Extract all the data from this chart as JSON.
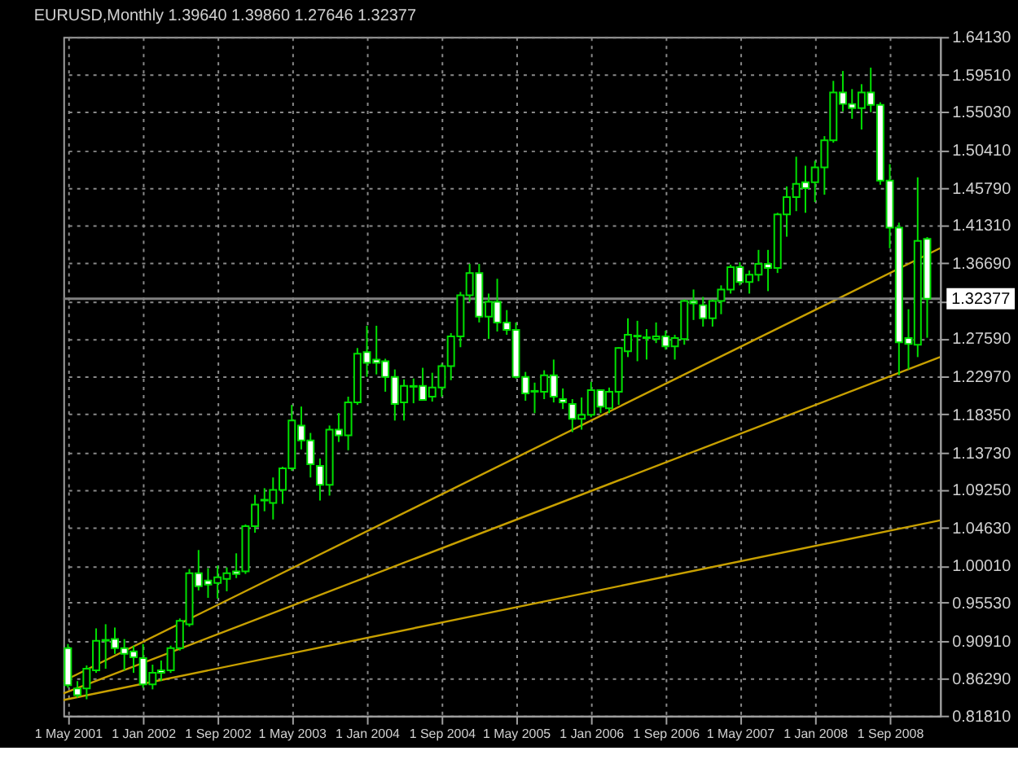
{
  "chart_data": {
    "type": "candlestick",
    "title": "EURUSD,Monthly  1.39640 1.39860 1.27646 1.32377",
    "color": "#00e000",
    "x": [
      "2001-05",
      "2001-06",
      "2001-07",
      "2001-08",
      "2001-09",
      "2001-10",
      "2001-11",
      "2001-12",
      "2002-01",
      "2002-02",
      "2002-03",
      "2002-04",
      "2002-05",
      "2002-06",
      "2002-07",
      "2002-08",
      "2002-09",
      "2002-10",
      "2002-11",
      "2002-12",
      "2003-01",
      "2003-02",
      "2003-03",
      "2003-04",
      "2003-05",
      "2003-06",
      "2003-07",
      "2003-08",
      "2003-09",
      "2003-10",
      "2003-11",
      "2003-12",
      "2004-01",
      "2004-02",
      "2004-03",
      "2004-04",
      "2004-05",
      "2004-06",
      "2004-07",
      "2004-08",
      "2004-09",
      "2004-10",
      "2004-11",
      "2004-12",
      "2005-01",
      "2005-02",
      "2005-03",
      "2005-04",
      "2005-05",
      "2005-06",
      "2005-07",
      "2005-08",
      "2005-09",
      "2005-10",
      "2005-11",
      "2005-12",
      "2006-01",
      "2006-02",
      "2006-03",
      "2006-04",
      "2006-05",
      "2006-06",
      "2006-07",
      "2006-08",
      "2006-09",
      "2006-10",
      "2006-11",
      "2006-12",
      "2007-01",
      "2007-02",
      "2007-03",
      "2007-04",
      "2007-05",
      "2007-06",
      "2007-07",
      "2007-08",
      "2007-09",
      "2007-10",
      "2007-11",
      "2007-12",
      "2008-01",
      "2008-02",
      "2008-03",
      "2008-04",
      "2008-05",
      "2008-06",
      "2008-07",
      "2008-08",
      "2008-09",
      "2008-10",
      "2008-11",
      "2008-12",
      "2009-01"
    ],
    "ohlc": [
      [
        0.9,
        0.905,
        0.852,
        0.855
      ],
      [
        0.851,
        0.86,
        0.84,
        0.843
      ],
      [
        0.851,
        0.879,
        0.838,
        0.875
      ],
      [
        0.873,
        0.924,
        0.87,
        0.909
      ],
      [
        0.909,
        0.929,
        0.875,
        0.91
      ],
      [
        0.911,
        0.925,
        0.893,
        0.9
      ],
      [
        0.9,
        0.911,
        0.873,
        0.893
      ],
      [
        0.896,
        0.903,
        0.87,
        0.889
      ],
      [
        0.888,
        0.905,
        0.852,
        0.856
      ],
      [
        0.856,
        0.88,
        0.85,
        0.87
      ],
      [
        0.873,
        0.885,
        0.86,
        0.87
      ],
      [
        0.873,
        0.903,
        0.87,
        0.9
      ],
      [
        0.9,
        0.936,
        0.897,
        0.933
      ],
      [
        0.929,
        0.996,
        0.926,
        0.991
      ],
      [
        0.991,
        1.019,
        0.97,
        0.975
      ],
      [
        0.982,
        0.997,
        0.961,
        0.977
      ],
      [
        0.979,
        1.0,
        0.96,
        0.986
      ],
      [
        0.984,
        0.998,
        0.969,
        0.991
      ],
      [
        0.993,
        1.015,
        0.985,
        0.99
      ],
      [
        0.993,
        1.05,
        0.99,
        1.048
      ],
      [
        1.048,
        1.086,
        1.04,
        1.074
      ],
      [
        1.079,
        1.094,
        1.066,
        1.08
      ],
      [
        1.076,
        1.107,
        1.056,
        1.092
      ],
      [
        1.092,
        1.12,
        1.075,
        1.118
      ],
      [
        1.118,
        1.195,
        1.115,
        1.176
      ],
      [
        1.17,
        1.193,
        1.141,
        1.152
      ],
      [
        1.152,
        1.161,
        1.107,
        1.123
      ],
      [
        1.121,
        1.13,
        1.079,
        1.098
      ],
      [
        1.098,
        1.17,
        1.085,
        1.165
      ],
      [
        1.165,
        1.185,
        1.15,
        1.158
      ],
      [
        1.158,
        1.205,
        1.14,
        1.198
      ],
      [
        1.198,
        1.264,
        1.195,
        1.257
      ],
      [
        1.259,
        1.291,
        1.229,
        1.246
      ],
      [
        1.25,
        1.291,
        1.232,
        1.246
      ],
      [
        1.248,
        1.251,
        1.211,
        1.229
      ],
      [
        1.229,
        1.238,
        1.176,
        1.196
      ],
      [
        1.198,
        1.226,
        1.176,
        1.218
      ],
      [
        1.218,
        1.227,
        1.197,
        1.217
      ],
      [
        1.218,
        1.24,
        1.2,
        1.201
      ],
      [
        1.205,
        1.234,
        1.199,
        1.216
      ],
      [
        1.216,
        1.245,
        1.205,
        1.242
      ],
      [
        1.242,
        1.282,
        1.225,
        1.278
      ],
      [
        1.278,
        1.332,
        1.265,
        1.328
      ],
      [
        1.328,
        1.366,
        1.32,
        1.355
      ],
      [
        1.355,
        1.366,
        1.295,
        1.302
      ],
      [
        1.302,
        1.33,
        1.275,
        1.32
      ],
      [
        1.32,
        1.348,
        1.284,
        1.295
      ],
      [
        1.295,
        1.31,
        1.28,
        1.286
      ],
      [
        1.286,
        1.295,
        1.227,
        1.229
      ],
      [
        1.229,
        1.235,
        1.2,
        1.209
      ],
      [
        1.212,
        1.222,
        1.185,
        1.211
      ],
      [
        1.211,
        1.237,
        1.202,
        1.231
      ],
      [
        1.231,
        1.25,
        1.198,
        1.205
      ],
      [
        1.202,
        1.215,
        1.19,
        1.198
      ],
      [
        1.196,
        1.202,
        1.162,
        1.178
      ],
      [
        1.178,
        1.204,
        1.165,
        1.183
      ],
      [
        1.183,
        1.223,
        1.18,
        1.213
      ],
      [
        1.213,
        1.213,
        1.185,
        1.193
      ],
      [
        1.191,
        1.216,
        1.185,
        1.211
      ],
      [
        1.211,
        1.265,
        1.195,
        1.264
      ],
      [
        1.26,
        1.3,
        1.253,
        1.28
      ],
      [
        1.279,
        1.297,
        1.248,
        1.278
      ],
      [
        1.277,
        1.287,
        1.25,
        1.276
      ],
      [
        1.275,
        1.295,
        1.27,
        1.278
      ],
      [
        1.278,
        1.285,
        1.262,
        1.266
      ],
      [
        1.266,
        1.28,
        1.25,
        1.276
      ],
      [
        1.275,
        1.323,
        1.268,
        1.321
      ],
      [
        1.321,
        1.335,
        1.298,
        1.318
      ],
      [
        1.316,
        1.326,
        1.29,
        1.3
      ],
      [
        1.3,
        1.323,
        1.29,
        1.321
      ],
      [
        1.321,
        1.34,
        1.305,
        1.335
      ],
      [
        1.335,
        1.365,
        1.33,
        1.362
      ],
      [
        1.362,
        1.368,
        1.34,
        1.344
      ],
      [
        1.344,
        1.358,
        1.33,
        1.353
      ],
      [
        1.353,
        1.383,
        1.345,
        1.366
      ],
      [
        1.366,
        1.383,
        1.333,
        1.361
      ],
      [
        1.361,
        1.428,
        1.355,
        1.426
      ],
      [
        1.426,
        1.46,
        1.399,
        1.447
      ],
      [
        1.447,
        1.496,
        1.43,
        1.463
      ],
      [
        1.465,
        1.485,
        1.428,
        1.458
      ],
      [
        1.465,
        1.491,
        1.441,
        1.483
      ],
      [
        1.483,
        1.521,
        1.45,
        1.516
      ],
      [
        1.516,
        1.588,
        1.513,
        1.574
      ],
      [
        1.574,
        1.6,
        1.551,
        1.56
      ],
      [
        1.56,
        1.578,
        1.542,
        1.555
      ],
      [
        1.555,
        1.584,
        1.529,
        1.574
      ],
      [
        1.574,
        1.604,
        1.55,
        1.559
      ],
      [
        1.559,
        1.562,
        1.462,
        1.467
      ],
      [
        1.467,
        1.487,
        1.385,
        1.41
      ],
      [
        1.41,
        1.416,
        1.231,
        1.271
      ],
      [
        1.276,
        1.311,
        1.238,
        1.269
      ],
      [
        1.268,
        1.471,
        1.253,
        1.394
      ],
      [
        1.3964,
        1.3986,
        1.27646,
        1.32377
      ]
    ],
    "series": [
      {
        "type": "line",
        "color": "#c8a000",
        "x": [
          "2001-04-16",
          "2009-02-12"
        ],
        "values": [
          0.86,
          1.385
        ]
      },
      {
        "type": "line",
        "color": "#c8a000",
        "x": [
          "2001-04-16",
          "2009-02-12"
        ],
        "values": [
          0.845,
          1.253
        ]
      },
      {
        "type": "line",
        "color": "#c8a000",
        "x": [
          "2001-04-16",
          "2009-02-12"
        ],
        "values": [
          0.837,
          1.055
        ]
      }
    ],
    "ref_lines": [
      {
        "axis": "y",
        "value": 1.32377,
        "label": "1.32377",
        "color": "#808080"
      }
    ],
    "xlim": [
      "2001-04-16",
      "2009-02-12"
    ],
    "xticks": [
      {
        "value": "2001-05-01",
        "label": "1 May 2001"
      },
      {
        "value": "2002-01-01",
        "label": "1 Jan 2002"
      },
      {
        "value": "2002-09-01",
        "label": "1 Sep 2002"
      },
      {
        "value": "2003-05-01",
        "label": "1 May 2003"
      },
      {
        "value": "2004-01-01",
        "label": "1 Jan 2004"
      },
      {
        "value": "2004-09-01",
        "label": "1 Sep 2004"
      },
      {
        "value": "2005-05-01",
        "label": "1 May 2005"
      },
      {
        "value": "2006-01-01",
        "label": "1 Jan 2006"
      },
      {
        "value": "2006-09-01",
        "label": "1 Sep 2006"
      },
      {
        "value": "2007-05-01",
        "label": "1 May 2007"
      },
      {
        "value": "2008-01-01",
        "label": "1 Jan 2008"
      },
      {
        "value": "2008-09-01",
        "label": "1 Sep 2008"
      }
    ],
    "ylim": [
      0.8181,
      1.6413
    ],
    "yticks": [
      {
        "value": 1.6413,
        "label": "1.64130"
      },
      {
        "value": 1.5951,
        "label": "1.59510"
      },
      {
        "value": 1.5503,
        "label": "1.55030"
      },
      {
        "value": 1.5041,
        "label": "1.50410"
      },
      {
        "value": 1.4579,
        "label": "1.45790"
      },
      {
        "value": 1.4131,
        "label": "1.41310"
      },
      {
        "value": 1.3669,
        "label": "1.36690"
      },
      {
        "value": 1.3207,
        "label": null
      },
      {
        "value": 1.2759,
        "label": "1.27590"
      },
      {
        "value": 1.2297,
        "label": "1.22970"
      },
      {
        "value": 1.1835,
        "label": "1.18350"
      },
      {
        "value": 1.1373,
        "label": "1.13730"
      },
      {
        "value": 1.0925,
        "label": "1.09250"
      },
      {
        "value": 1.0463,
        "label": "1.04630"
      },
      {
        "value": 1.0001,
        "label": "1.00010"
      },
      {
        "value": 0.9553,
        "label": "0.95530"
      },
      {
        "value": 0.9091,
        "label": "0.90910"
      },
      {
        "value": 0.8629,
        "label": "0.86290"
      },
      {
        "value": 0.8181,
        "label": "0.81810"
      }
    ],
    "grid": true
  }
}
